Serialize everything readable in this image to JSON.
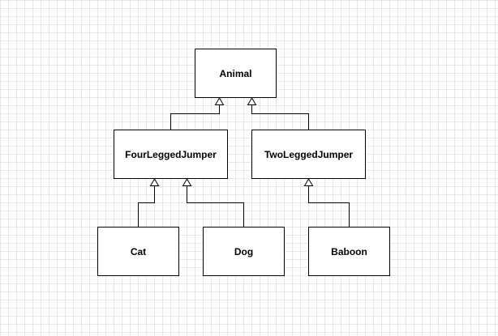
{
  "diagram": {
    "nodes": {
      "animal": "Animal",
      "four_legged_jumper": "FourLeggedJumper",
      "two_legged_jumper": "TwoLeggedJumper",
      "cat": "Cat",
      "dog": "Dog",
      "baboon": "Baboon"
    },
    "edges": [
      {
        "from": "four_legged_jumper",
        "to": "animal",
        "type": "generalization"
      },
      {
        "from": "two_legged_jumper",
        "to": "animal",
        "type": "generalization"
      },
      {
        "from": "cat",
        "to": "four_legged_jumper",
        "type": "generalization"
      },
      {
        "from": "dog",
        "to": "four_legged_jumper",
        "type": "generalization"
      },
      {
        "from": "baboon",
        "to": "two_legged_jumper",
        "type": "generalization"
      }
    ]
  }
}
